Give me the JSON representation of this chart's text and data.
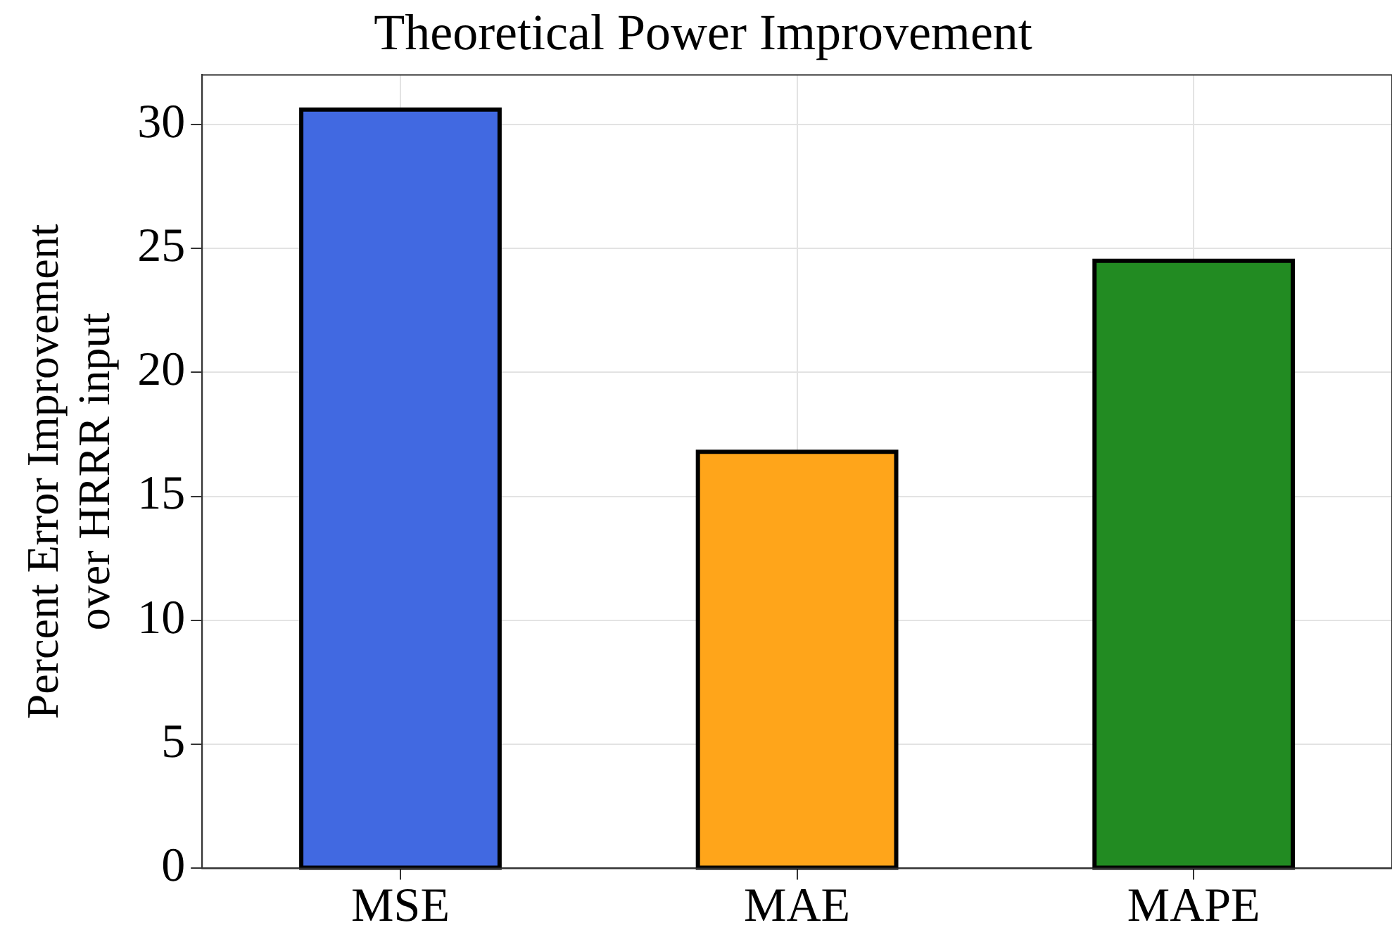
{
  "chart_data": {
    "type": "bar",
    "title": "Theoretical Power Improvement",
    "ylabel": "Percent Error Improvement\nover HRRR input",
    "categories": [
      "MSE",
      "MAE",
      "MAPE"
    ],
    "values": [
      30.6,
      16.8,
      24.5
    ],
    "colors": [
      "#4169e1",
      "#ffa51a",
      "#228b22"
    ],
    "ylim": [
      0,
      32
    ],
    "yticks": [
      0,
      5,
      10,
      15,
      20,
      25,
      30
    ],
    "grid": true
  }
}
